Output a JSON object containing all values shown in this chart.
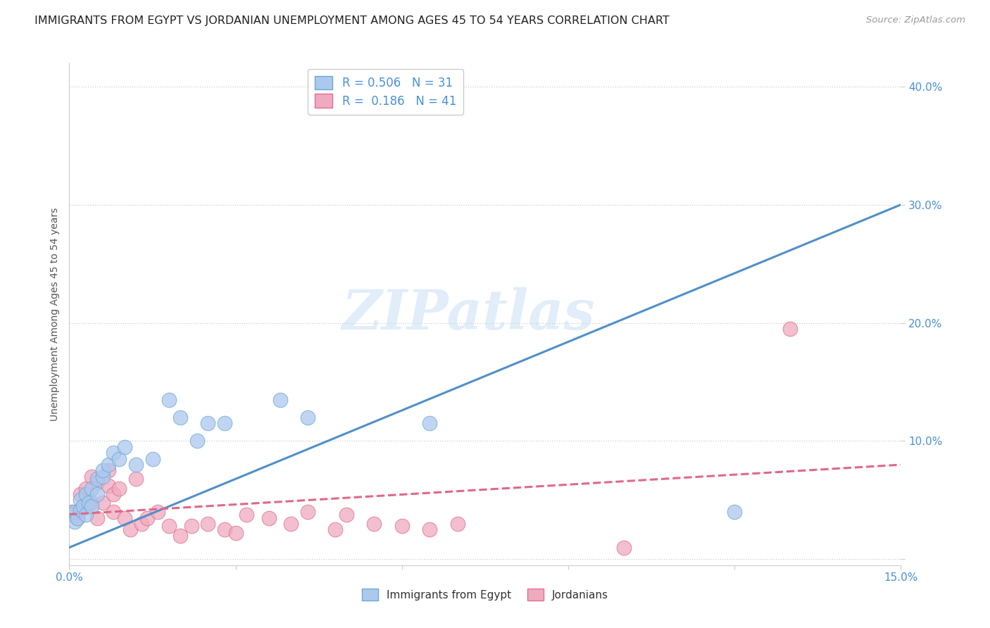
{
  "title": "IMMIGRANTS FROM EGYPT VS JORDANIAN UNEMPLOYMENT AMONG AGES 45 TO 54 YEARS CORRELATION CHART",
  "source": "Source: ZipAtlas.com",
  "ylabel": "Unemployment Among Ages 45 to 54 years",
  "xlim": [
    0.0,
    0.15
  ],
  "ylim": [
    -0.005,
    0.42
  ],
  "xtick_positions": [
    0.0,
    0.03,
    0.06,
    0.09,
    0.12,
    0.15
  ],
  "xtick_labels": [
    "0.0%",
    "",
    "",
    "",
    "",
    "15.0%"
  ],
  "ytick_positions": [
    0.0,
    0.1,
    0.2,
    0.3,
    0.4
  ],
  "ytick_labels": [
    "",
    "10.0%",
    "20.0%",
    "30.0%",
    "40.0%"
  ],
  "watermark_text": "ZIPatlas",
  "blue_x": [
    0.0005,
    0.001,
    0.001,
    0.0015,
    0.002,
    0.002,
    0.0025,
    0.003,
    0.003,
    0.0035,
    0.004,
    0.004,
    0.005,
    0.005,
    0.006,
    0.006,
    0.007,
    0.008,
    0.009,
    0.01,
    0.012,
    0.015,
    0.018,
    0.02,
    0.023,
    0.025,
    0.028,
    0.038,
    0.043,
    0.12,
    0.065
  ],
  "blue_y": [
    0.038,
    0.032,
    0.04,
    0.035,
    0.042,
    0.05,
    0.045,
    0.038,
    0.055,
    0.048,
    0.045,
    0.06,
    0.068,
    0.055,
    0.07,
    0.075,
    0.08,
    0.09,
    0.085,
    0.095,
    0.08,
    0.085,
    0.135,
    0.12,
    0.1,
    0.115,
    0.115,
    0.135,
    0.12,
    0.04,
    0.115
  ],
  "pink_x": [
    0.0005,
    0.001,
    0.0015,
    0.002,
    0.002,
    0.003,
    0.003,
    0.004,
    0.004,
    0.005,
    0.005,
    0.006,
    0.007,
    0.007,
    0.008,
    0.008,
    0.009,
    0.01,
    0.011,
    0.012,
    0.013,
    0.014,
    0.016,
    0.018,
    0.02,
    0.022,
    0.025,
    0.028,
    0.03,
    0.032,
    0.036,
    0.04,
    0.043,
    0.048,
    0.05,
    0.055,
    0.06,
    0.065,
    0.07,
    0.1,
    0.13
  ],
  "pink_y": [
    0.04,
    0.038,
    0.035,
    0.042,
    0.055,
    0.045,
    0.06,
    0.048,
    0.07,
    0.035,
    0.065,
    0.048,
    0.062,
    0.075,
    0.04,
    0.055,
    0.06,
    0.035,
    0.025,
    0.068,
    0.03,
    0.035,
    0.04,
    0.028,
    0.02,
    0.028,
    0.03,
    0.025,
    0.022,
    0.038,
    0.035,
    0.03,
    0.04,
    0.025,
    0.038,
    0.03,
    0.028,
    0.025,
    0.03,
    0.01,
    0.195
  ],
  "blue_color": "#adc8ee",
  "blue_edge_color": "#6aaad4",
  "blue_line_color": "#5090c8",
  "pink_color": "#f0aabf",
  "pink_edge_color": "#e07090",
  "pink_line_color": "#e06888",
  "blue_r": 0.506,
  "blue_n": 31,
  "pink_r": 0.186,
  "pink_n": 41,
  "legend_label_blue": "Immigrants from Egypt",
  "legend_label_pink": "Jordanians",
  "background_color": "#ffffff",
  "grid_color": "#cccccc",
  "title_fontsize": 11.5,
  "axis_label_fontsize": 10,
  "tick_fontsize": 11,
  "source_fontsize": 9.5
}
